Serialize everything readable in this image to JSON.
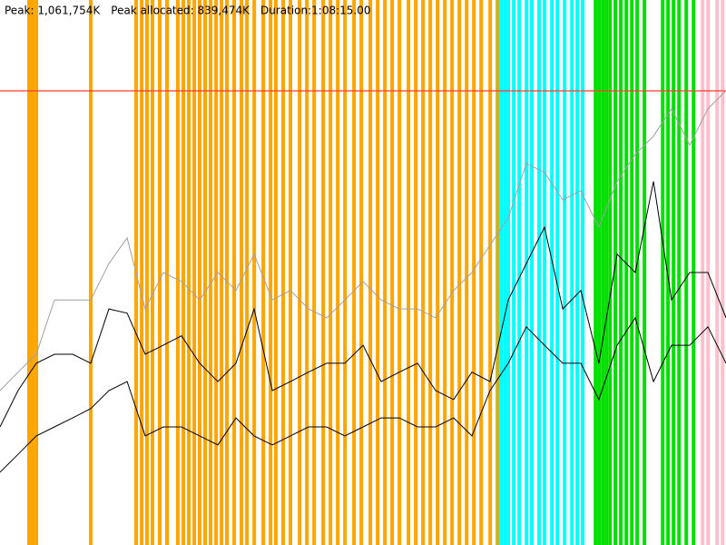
{
  "chart_data": {
    "type": "line",
    "header": [
      "Peak: 1,061,754K",
      "Peak allocated: 839,474K",
      "Duration:1:08:15.00"
    ],
    "xlim": [
      0,
      4095
    ],
    "ylim": [
      0,
      1274105
    ],
    "peak": {
      "value": 1061754,
      "color": "#ff3b30"
    },
    "x": [
      0,
      102,
      205,
      307,
      410,
      512,
      614,
      717,
      819,
      921,
      1024,
      1126,
      1229,
      1331,
      1433,
      1536,
      1638,
      1740,
      1843,
      1945,
      2048,
      2150,
      2252,
      2355,
      2457,
      2559,
      2662,
      2764,
      2867,
      2969,
      3071,
      3174,
      3276,
      3378,
      3481,
      3583,
      3686,
      3788,
      3890,
      3993,
      4095
    ],
    "series": [
      {
        "color": "#a0a0a0",
        "values": [
          361000,
          404000,
          446000,
          573000,
          573000,
          573000,
          658000,
          718000,
          552000,
          637000,
          616000,
          573000,
          637000,
          595000,
          680000,
          573000,
          595000,
          552000,
          531000,
          573000,
          616000,
          573000,
          552000,
          552000,
          531000,
          595000,
          637000,
          701000,
          765000,
          892000,
          871000,
          807000,
          828000,
          743000,
          850000,
          913000,
          956000,
          1020000,
          935000,
          1020000,
          1062000
        ]
      },
      {
        "color": "#000000",
        "values": [
          276000,
          361000,
          425000,
          446000,
          446000,
          425000,
          552000,
          542000,
          446000,
          467000,
          489000,
          425000,
          382000,
          425000,
          552000,
          361000,
          382000,
          404000,
          425000,
          425000,
          467000,
          382000,
          404000,
          425000,
          361000,
          340000,
          404000,
          382000,
          573000,
          658000,
          743000,
          552000,
          595000,
          425000,
          680000,
          637000,
          850000,
          573000,
          637000,
          637000,
          531000
        ]
      },
      {
        "color": "#000000",
        "values": [
          170000,
          212000,
          255000,
          276000,
          297000,
          319000,
          361000,
          382000,
          255000,
          276000,
          276000,
          255000,
          234000,
          297000,
          255000,
          234000,
          255000,
          276000,
          276000,
          255000,
          276000,
          297000,
          297000,
          276000,
          276000,
          297000,
          255000,
          361000,
          425000,
          510000,
          467000,
          425000,
          425000,
          340000,
          467000,
          531000,
          382000,
          467000,
          467000,
          510000,
          425000
        ]
      }
    ],
    "events": [
      {
        "color": "#ffa500",
        "x": [
          164,
          184,
          205,
          512,
          768,
          799,
          829,
          860,
          901,
          942,
          1003,
          1034,
          1065,
          1096,
          1126,
          1157,
          1188,
          1219,
          1249,
          1280,
          1321,
          1362,
          1393,
          1434,
          1485,
          1526,
          1556,
          1597,
          1638,
          1690,
          1731,
          1772,
          1823,
          1864,
          1905,
          1946,
          1997,
          2038,
          2089,
          2130,
          2171,
          2212,
          2253,
          2304,
          2345,
          2386,
          2427,
          2468,
          2509,
          2550,
          2591,
          2632,
          2673,
          2714,
          2765
        ]
      },
      {
        "color": "#c8b428",
        "x": [
          2806
        ]
      },
      {
        "color": "#00ffff",
        "x": [
          2826,
          2847,
          2867,
          2898,
          2929,
          2970,
          3000,
          3041,
          3072,
          3113,
          3144,
          3185,
          3226,
          3256,
          3287
        ]
      },
      {
        "color": "#00e000",
        "x": [
          3359,
          3379,
          3400,
          3420,
          3441,
          3471,
          3502,
          3533,
          3564,
          3594,
          3635,
          3738,
          3768,
          3799,
          3830,
          3871,
          3912
        ]
      },
      {
        "color": "#ffc0cb",
        "x": [
          3963,
          3994,
          4045,
          4076
        ]
      }
    ]
  }
}
